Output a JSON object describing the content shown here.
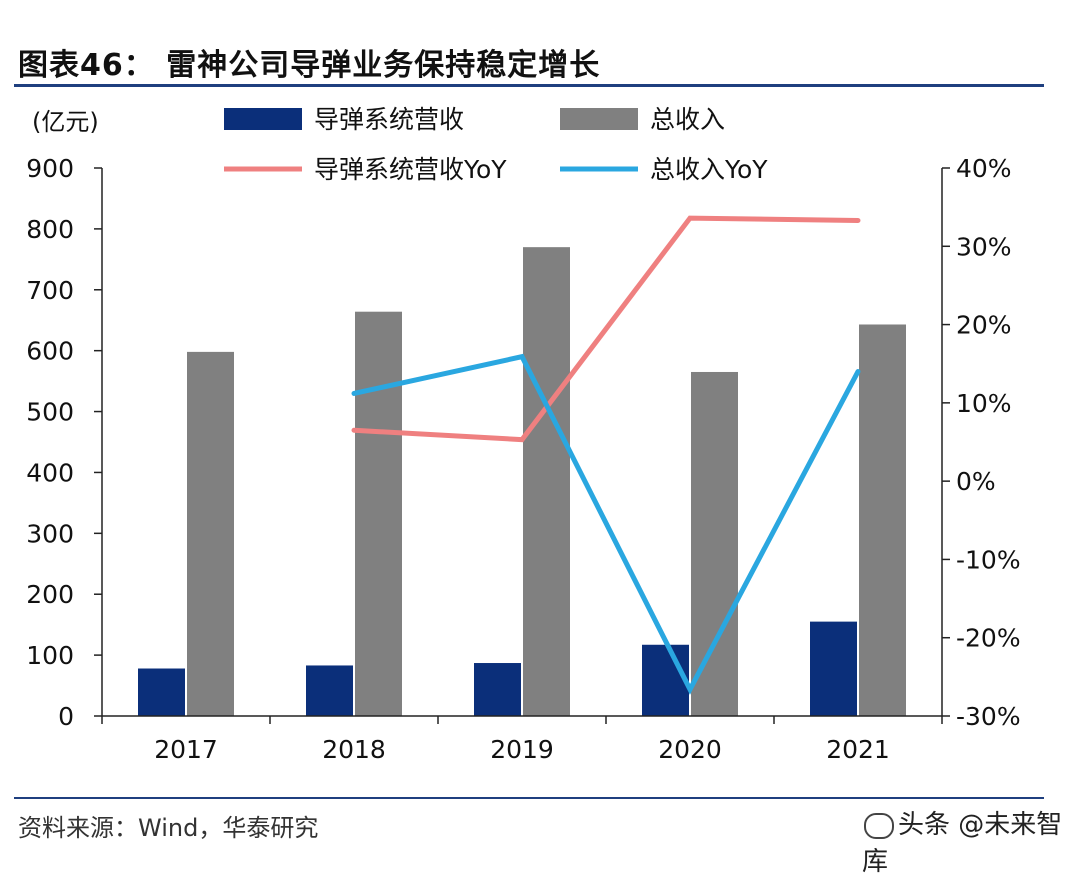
{
  "header": {
    "title": "图表46：  雷神公司导弹业务保持稳定增长"
  },
  "footer": {
    "source": "资料来源：Wind，华泰研究",
    "watermark": "头条 @未来智库"
  },
  "colors": {
    "missile_bar": "#0b2f7a",
    "total_bar": "#808080",
    "missile_yoy": "#ef8080",
    "total_yoy": "#2aa7e0",
    "rule": "#1f3f7f"
  },
  "chart_data": {
    "type": "bar",
    "title": "雷神公司导弹业务保持稳定增长",
    "left_unit": "(亿元)",
    "categories": [
      "2017",
      "2018",
      "2019",
      "2020",
      "2021"
    ],
    "left_axis": {
      "min": 0,
      "max": 900,
      "ticks": [
        0,
        100,
        200,
        300,
        400,
        500,
        600,
        700,
        800,
        900
      ]
    },
    "right_axis": {
      "min": -30,
      "max": 40,
      "ticks": [
        -30,
        -20,
        -10,
        0,
        10,
        20,
        30,
        40
      ],
      "tick_labels": [
        "-30%",
        "-20%",
        "-10%",
        "0%",
        "10%",
        "20%",
        "30%",
        "40%"
      ]
    },
    "series": [
      {
        "name": "导弹系统营收",
        "type": "bar",
        "axis": "left",
        "values": [
          78,
          83,
          87,
          117,
          155
        ]
      },
      {
        "name": "总收入",
        "type": "bar",
        "axis": "left",
        "values": [
          598,
          664,
          770,
          565,
          643
        ]
      },
      {
        "name": "导弹系统营收YoY",
        "type": "line",
        "axis": "right",
        "values": [
          null,
          6.5,
          5.3,
          33.6,
          33.3
        ]
      },
      {
        "name": "总收入YoY",
        "type": "line",
        "axis": "right",
        "values": [
          null,
          11.2,
          15.9,
          -26.6,
          14.0
        ]
      }
    ],
    "legend": [
      "导弹系统营收",
      "总收入",
      "导弹系统营收YoY",
      "总收入YoY"
    ]
  }
}
